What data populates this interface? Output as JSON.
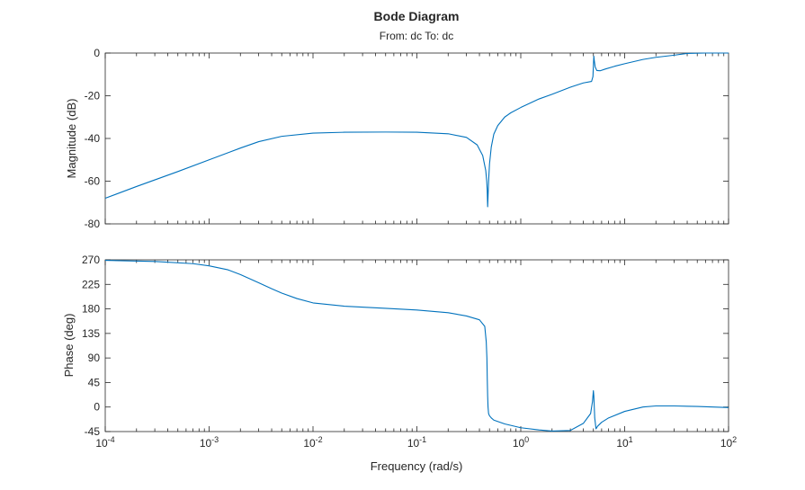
{
  "chart_data": {
    "type": "line",
    "title": "Bode Diagram",
    "subtitle": "From: dc  To: dc",
    "xlabel": "Frequency (rad/s)",
    "xscale": "log",
    "xlim": [
      0.0001,
      100
    ],
    "x_ticks": [
      {
        "value": 0.0001,
        "base": "10",
        "exp": "-4"
      },
      {
        "value": 0.001,
        "base": "10",
        "exp": "-3"
      },
      {
        "value": 0.01,
        "base": "10",
        "exp": "-2"
      },
      {
        "value": 0.1,
        "base": "10",
        "exp": "-1"
      },
      {
        "value": 1,
        "base": "10",
        "exp": "0"
      },
      {
        "value": 10,
        "base": "10",
        "exp": "1"
      },
      {
        "value": 100,
        "base": "10",
        "exp": "2"
      }
    ],
    "grid": false,
    "color": "#0072BD",
    "axis_color": "#262626",
    "panels": [
      {
        "name": "magnitude",
        "ylabel": "Magnitude (dB)",
        "ylim": [
          -80,
          0
        ],
        "yticks": [
          "-80",
          "-60",
          "-40",
          "-20",
          "0"
        ],
        "series": [
          {
            "x": [
              0.0001,
              0.0002,
              0.0005,
              0.001,
              0.002,
              0.003,
              0.005,
              0.01,
              0.02,
              0.05,
              0.1,
              0.2,
              0.3,
              0.38,
              0.43,
              0.46,
              0.47,
              0.475,
              0.48,
              0.485,
              0.49,
              0.5,
              0.52,
              0.55,
              0.6,
              0.7,
              0.8,
              1,
              1.5,
              2,
              3,
              4,
              4.8,
              4.95,
              5.02,
              5.05,
              5.1,
              5.2,
              5.4,
              5.8,
              6.5,
              8,
              10,
              15,
              20,
              30,
              40,
              60,
              100
            ],
            "values": [
              -68,
              -62.5,
              -55.5,
              -50,
              -44.5,
              -41.5,
              -39,
              -37.5,
              -37.1,
              -37,
              -37.1,
              -37.8,
              -39.5,
              -43,
              -48,
              -55,
              -60,
              -64,
              -72,
              -66,
              -60,
              -52,
              -44,
              -38,
              -34,
              -30,
              -28,
              -25.5,
              -21.5,
              -19.3,
              -16,
              -14,
              -13.3,
              -11,
              -4,
              -1.5,
              -3.5,
              -6.5,
              -8.2,
              -8.3,
              -7.5,
              -6.2,
              -5,
              -3,
              -2,
              -1,
              -0.2,
              0,
              0
            ]
          }
        ]
      },
      {
        "name": "phase",
        "ylabel": "Phase (deg)",
        "ylim": [
          -45,
          270
        ],
        "yticks": [
          "-45",
          "0",
          "45",
          "90",
          "135",
          "180",
          "225",
          "270"
        ],
        "series": [
          {
            "x": [
              0.0001,
              0.0003,
              0.0007,
              0.001,
              0.0015,
              0.002,
              0.003,
              0.004,
              0.005,
              0.007,
              0.01,
              0.02,
              0.05,
              0.1,
              0.2,
              0.3,
              0.4,
              0.45,
              0.465,
              0.472,
              0.476,
              0.48,
              0.484,
              0.49,
              0.5,
              0.52,
              0.55,
              0.7,
              1,
              1.5,
              2,
              3,
              4,
              4.7,
              4.9,
              5.0,
              5.05,
              5.15,
              5.3,
              5.5,
              6,
              7,
              10,
              15,
              20,
              30,
              50,
              100
            ],
            "values": [
              269,
              267,
              263,
              259,
              252,
              243,
              228,
              217,
              209,
              199,
              191,
              185,
              181,
              178,
              173,
              167,
              160,
              148,
              120,
              90,
              50,
              20,
              0,
              -12,
              -16,
              -20,
              -24,
              -31,
              -38,
              -42,
              -44,
              -43,
              -30,
              -12,
              10,
              30,
              20,
              -20,
              -40,
              -35,
              -28,
              -20,
              -8,
              0,
              2,
              2,
              1,
              -1
            ]
          }
        ]
      }
    ]
  }
}
